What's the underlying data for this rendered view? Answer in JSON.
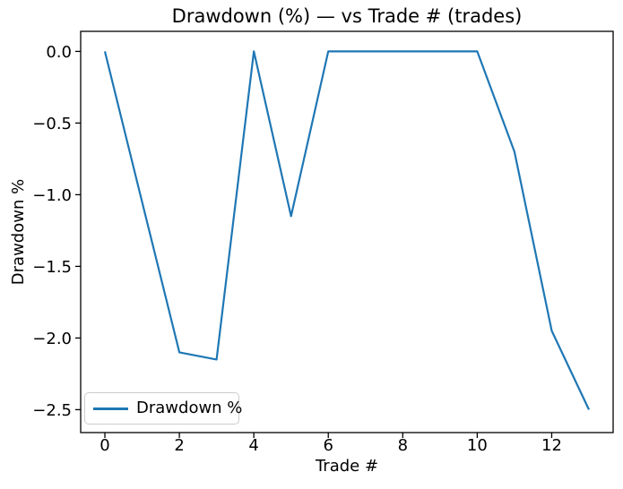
{
  "chart_data": {
    "type": "line",
    "title": "Drawdown (%) — vs Trade # (trades)",
    "xlabel": "Trade #",
    "ylabel": "Drawdown %",
    "x": [
      0,
      1,
      2,
      3,
      4,
      5,
      6,
      7,
      8,
      9,
      10,
      11,
      12,
      13
    ],
    "series": [
      {
        "name": "Drawdown %",
        "color": "#1f77b4",
        "values": [
          0.0,
          -1.05,
          -2.1,
          -2.15,
          0.0,
          -1.15,
          0.0,
          0.0,
          0.0,
          0.0,
          0.0,
          -0.7,
          -1.95,
          -2.5
        ]
      }
    ],
    "xlim": [
      -0.65,
      13.65
    ],
    "ylim": [
      -2.66,
      0.14
    ],
    "xticks": [
      0,
      2,
      4,
      6,
      8,
      10,
      12
    ],
    "xtick_labels": [
      "0",
      "2",
      "4",
      "6",
      "8",
      "10",
      "12"
    ],
    "yticks": [
      0.0,
      -0.5,
      -1.0,
      -1.5,
      -2.0,
      -2.5
    ],
    "ytick_labels": [
      "0.0",
      "−0.5",
      "−1.0",
      "−1.5",
      "−2.0",
      "−2.5"
    ],
    "grid": false,
    "legend": {
      "label": "Drawdown %",
      "position": "lower left"
    }
  },
  "colors": {
    "line": "#1f77b4",
    "axes": "#000000",
    "tick_label": "#000000",
    "background": "#ffffff",
    "legend_border": "#cccccc"
  }
}
